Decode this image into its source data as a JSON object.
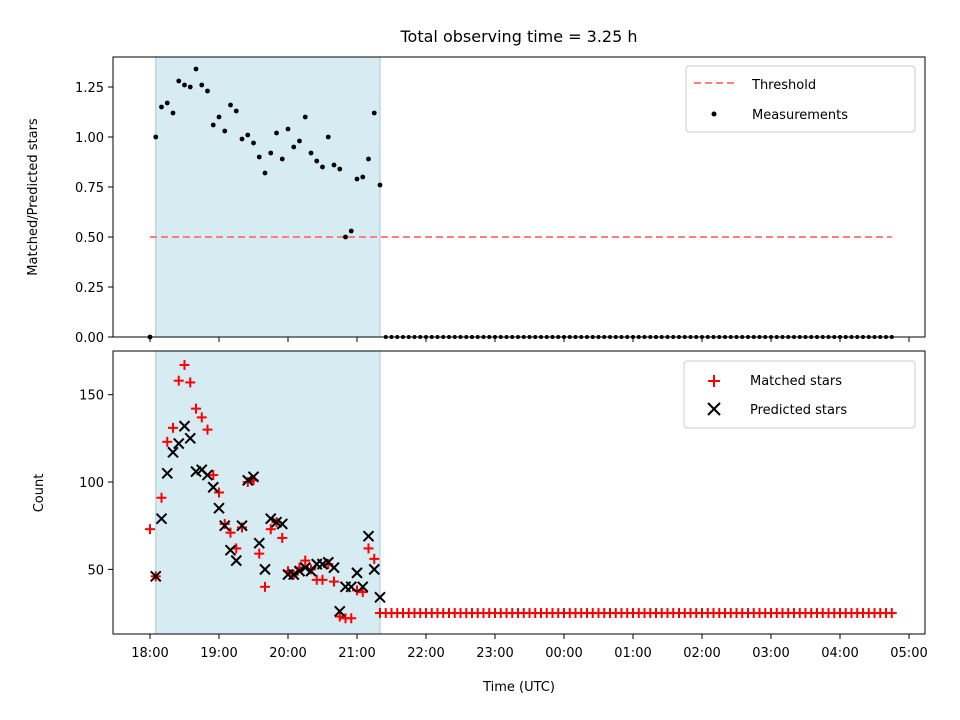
{
  "title": "Total observing time = 3.25 h",
  "x_tick_labels": [
    "18:00",
    "19:00",
    "20:00",
    "21:00",
    "22:00",
    "23:00",
    "00:00",
    "01:00",
    "02:00",
    "03:00",
    "04:00",
    "05:00"
  ],
  "xlabel": "Time (UTC)",
  "colors": {
    "shade": "#add8e6",
    "threshold": "#ff7f7f",
    "measurement": "#000000",
    "matched": "#ff0000",
    "predicted": "#000000"
  },
  "chart_data": [
    {
      "type": "scatter",
      "ylabel": "Matched/Predicted stars",
      "xlim": [
        "17:27",
        "05:15"
      ],
      "ylim": [
        0,
        1.4
      ],
      "y_tick_labels": [
        "0.00",
        "0.25",
        "0.50",
        "0.75",
        "1.00",
        "1.25"
      ],
      "shaded_span": [
        "18:05",
        "21:20"
      ],
      "threshold": {
        "name": "Threshold",
        "y": 0.5,
        "x_range": [
          "18:00",
          "04:45"
        ],
        "style": "dashed"
      },
      "legend": [
        "Threshold",
        "Measurements"
      ],
      "legend_position": "top-right",
      "series": [
        {
          "name": "Measurements",
          "x": [
            "18:00",
            "18:05",
            "18:10",
            "18:15",
            "18:20",
            "18:25",
            "18:30",
            "18:35",
            "18:40",
            "18:45",
            "18:50",
            "18:55",
            "19:00",
            "19:05",
            "19:10",
            "19:15",
            "19:20",
            "19:25",
            "19:30",
            "19:35",
            "19:40",
            "19:45",
            "19:50",
            "19:55",
            "20:00",
            "20:05",
            "20:10",
            "20:15",
            "20:20",
            "20:25",
            "20:30",
            "20:35",
            "20:40",
            "20:45",
            "20:50",
            "20:55",
            "21:00",
            "21:05",
            "21:10",
            "21:15",
            "21:20"
          ],
          "y": [
            0.0,
            1.0,
            1.15,
            1.17,
            1.12,
            1.28,
            1.26,
            1.25,
            1.34,
            1.26,
            1.23,
            1.06,
            1.1,
            1.03,
            1.16,
            1.13,
            0.99,
            1.01,
            0.97,
            0.9,
            0.82,
            0.92,
            1.02,
            0.89,
            1.04,
            0.95,
            0.98,
            1.1,
            0.92,
            0.88,
            0.85,
            1.0,
            0.86,
            0.84,
            0.5,
            0.53,
            0.79,
            0.8,
            0.89,
            1.12,
            0.76
          ]
        }
      ],
      "zero_series": {
        "from": "21:25",
        "to": "04:45",
        "step_minutes": 5,
        "y": 0
      }
    },
    {
      "type": "scatter",
      "ylabel": "Count",
      "xlim": [
        "17:27",
        "05:15"
      ],
      "ylim": [
        13,
        175
      ],
      "y_tick_labels": [
        "50",
        "100",
        "150"
      ],
      "y_ticks": [
        50,
        100,
        150
      ],
      "shaded_span": [
        "18:05",
        "21:20"
      ],
      "legend": [
        "Matched stars",
        "Predicted stars"
      ],
      "legend_position": "top-right",
      "series": [
        {
          "name": "Matched stars",
          "marker": "+",
          "x": [
            "18:00",
            "18:05",
            "18:10",
            "18:15",
            "18:20",
            "18:25",
            "18:30",
            "18:35",
            "18:40",
            "18:45",
            "18:50",
            "18:55",
            "19:00",
            "19:05",
            "19:10",
            "19:15",
            "19:20",
            "19:25",
            "19:30",
            "19:35",
            "19:40",
            "19:45",
            "19:50",
            "19:55",
            "20:00",
            "20:05",
            "20:10",
            "20:15",
            "20:20",
            "20:25",
            "20:30",
            "20:35",
            "20:40",
            "20:45",
            "20:50",
            "20:55",
            "21:00",
            "21:05",
            "21:10",
            "21:15",
            "21:20"
          ],
          "y": [
            73,
            46,
            91,
            123,
            131,
            158,
            167,
            157,
            142,
            137,
            130,
            104,
            94,
            76,
            71,
            62,
            74,
            100,
            101,
            59,
            40,
            73,
            77,
            68,
            49,
            47,
            51,
            55,
            50,
            44,
            44,
            53,
            43,
            23,
            22,
            22,
            38,
            37,
            62,
            56,
            25
          ]
        },
        {
          "name": "Predicted stars",
          "marker": "x",
          "x": [
            "18:05",
            "18:10",
            "18:15",
            "18:20",
            "18:25",
            "18:30",
            "18:35",
            "18:40",
            "18:45",
            "18:50",
            "18:55",
            "19:00",
            "19:05",
            "19:10",
            "19:15",
            "19:20",
            "19:25",
            "19:30",
            "19:35",
            "19:40",
            "19:45",
            "19:50",
            "19:55",
            "20:00",
            "20:05",
            "20:10",
            "20:15",
            "20:20",
            "20:25",
            "20:30",
            "20:35",
            "20:40",
            "20:45",
            "20:50",
            "20:55",
            "21:00",
            "21:05",
            "21:10",
            "21:15",
            "21:20"
          ],
          "y": [
            46,
            79,
            105,
            117,
            122,
            132,
            125,
            106,
            107,
            104,
            97,
            85,
            75,
            61,
            55,
            75,
            101,
            103,
            65,
            50,
            79,
            77,
            76,
            47,
            47,
            49,
            51,
            49,
            53,
            53,
            54,
            51,
            26,
            40,
            40,
            48,
            40,
            69,
            50,
            34
          ]
        }
      ],
      "tail_series": {
        "from": "21:25",
        "to": "04:45",
        "step_minutes": 5,
        "y": 25,
        "series": "Matched stars"
      }
    }
  ]
}
